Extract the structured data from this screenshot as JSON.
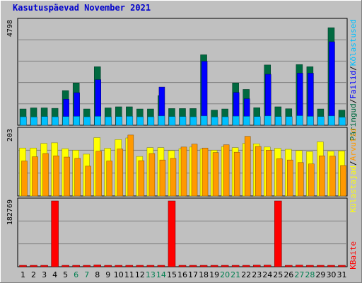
{
  "title": "Kasutuspäevad November 2021",
  "colors": {
    "frame": "#c0c0c0",
    "plot_bg": "#c0c0c0",
    "grid": "#808080",
    "title": "#0000cc",
    "pages": "#0000ff",
    "hits": "#00c0ff",
    "files": "#006a40",
    "visits": "#ffff00",
    "sites": "#ff9900",
    "kbytes": "#ff0000",
    "weekend_day": "#007f50",
    "weekday": "#000000"
  },
  "right_labels": {
    "top": [
      "Päringud",
      "/",
      "Failid",
      "/",
      "Kõlastused"
    ],
    "mid": [
      "Külastajad",
      "/",
      "Arvutid"
    ],
    "bottom": [
      "KBaite"
    ]
  },
  "chart_data": [
    {
      "type": "bar",
      "name": "top",
      "y_tick_label": "4798",
      "ylim": [
        0,
        4798
      ],
      "categories": [
        "1",
        "2",
        "3",
        "4",
        "5",
        "6",
        "7",
        "8",
        "9",
        "10",
        "11",
        "12",
        "13",
        "14",
        "15",
        "16",
        "17",
        "18",
        "19",
        "20",
        "21",
        "22",
        "23",
        "24",
        "25",
        "26",
        "27",
        "28",
        "29",
        "30",
        "31"
      ],
      "weekend_days": [
        "6",
        "7",
        "13",
        "14",
        "20",
        "21",
        "27",
        "28"
      ],
      "series": [
        {
          "role": "files",
          "values": [
            750,
            800,
            800,
            780,
            1600,
            1950,
            750,
            2700,
            800,
            850,
            850,
            750,
            750,
            1370,
            770,
            770,
            770,
            3250,
            700,
            750,
            1950,
            1650,
            810,
            2780,
            850,
            760,
            2800,
            2700,
            750,
            4500,
            700
          ]
        },
        {
          "role": "pages",
          "values": [
            0,
            0,
            0,
            0,
            1200,
            1500,
            0,
            2100,
            0,
            0,
            0,
            0,
            0,
            1760,
            0,
            0,
            0,
            2950,
            0,
            0,
            1510,
            1220,
            0,
            2350,
            0,
            0,
            2400,
            2400,
            0,
            3850,
            0
          ]
        },
        {
          "role": "hits",
          "values": [
            390,
            380,
            400,
            390,
            400,
            410,
            390,
            410,
            390,
            400,
            410,
            390,
            390,
            430,
            400,
            400,
            390,
            430,
            380,
            390,
            420,
            410,
            400,
            430,
            400,
            400,
            440,
            410,
            400,
            430,
            370
          ]
        }
      ]
    },
    {
      "type": "bar",
      "name": "mid",
      "y_tick_label": "203",
      "ylim": [
        0,
        203
      ],
      "categories": [
        "1",
        "2",
        "3",
        "4",
        "5",
        "6",
        "7",
        "8",
        "9",
        "10",
        "11",
        "12",
        "13",
        "14",
        "15",
        "16",
        "17",
        "18",
        "19",
        "20",
        "21",
        "22",
        "23",
        "24",
        "25",
        "26",
        "27",
        "28",
        "29",
        "30",
        "31"
      ],
      "series": [
        {
          "role": "visits",
          "values": [
            148,
            148,
            162,
            164,
            146,
            141,
            129,
            180,
            147,
            174,
            179,
            122,
            149,
            149,
            140,
            146,
            151,
            145,
            141,
            152,
            149,
            162,
            161,
            151,
            147,
            144,
            140,
            137,
            167,
            138,
            139
          ]
        },
        {
          "role": "sites",
          "values": [
            108,
            121,
            131,
            124,
            120,
            116,
            92,
            138,
            108,
            145,
            188,
            109,
            131,
            111,
            116,
            151,
            160,
            148,
            134,
            158,
            135,
            184,
            153,
            141,
            115,
            111,
            103,
            99,
            124,
            123,
            94
          ]
        }
      ]
    },
    {
      "type": "bar",
      "name": "bottom",
      "y_tick_label": "182769",
      "ylim": [
        0,
        182769
      ],
      "categories": [
        "1",
        "2",
        "3",
        "4",
        "5",
        "6",
        "7",
        "8",
        "9",
        "10",
        "11",
        "12",
        "13",
        "14",
        "15",
        "16",
        "17",
        "18",
        "19",
        "20",
        "21",
        "22",
        "23",
        "24",
        "25",
        "26",
        "27",
        "28",
        "29",
        "30",
        "31"
      ],
      "series": [
        {
          "role": "kbytes",
          "values": [
            1200,
            1200,
            1200,
            182769,
            1200,
            1200,
            1200,
            5000,
            1200,
            1200,
            1200,
            1200,
            1200,
            1200,
            182769,
            1200,
            1200,
            1200,
            1200,
            1200,
            1200,
            1200,
            4500,
            4500,
            182769,
            1200,
            4500,
            1200,
            1200,
            1200,
            1200
          ]
        }
      ]
    }
  ]
}
